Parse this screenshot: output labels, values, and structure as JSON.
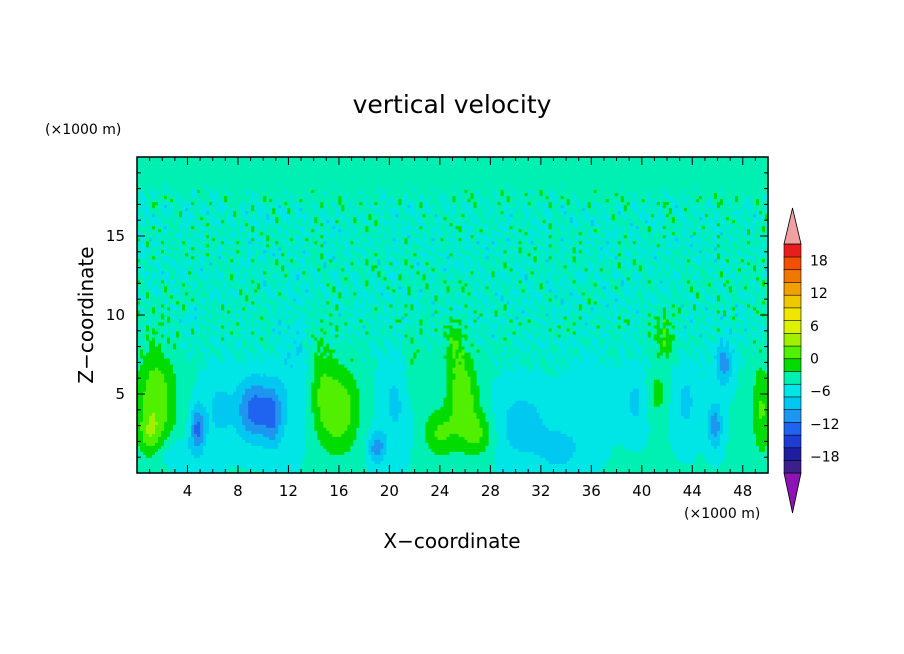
{
  "chart_data": {
    "type": "heatmap",
    "title": "vertical velocity",
    "xlabel": "X−coordinate",
    "ylabel": "Z−coordinate",
    "x_unit": "(×1000 m)",
    "y_unit": "(×1000 m)",
    "xlim": [
      0,
      50
    ],
    "ylim": [
      0,
      20
    ],
    "x_ticks": [
      "4",
      "8",
      "12",
      "16",
      "20",
      "24",
      "28",
      "32",
      "36",
      "40",
      "44",
      "48"
    ],
    "y_ticks": [
      "5",
      "10",
      "15"
    ],
    "colorbar": {
      "ticks": [
        "18",
        "12",
        "6",
        "0",
        "−6",
        "−12",
        "−18"
      ],
      "range": [
        -21,
        21
      ],
      "step": 3,
      "extend": "both",
      "colors": [
        "#3c1e8c",
        "#1e1ea0",
        "#1e3cd2",
        "#1e64f0",
        "#1e96f0",
        "#00c8f0",
        "#00e6e6",
        "#00f0b4",
        "#00dc00",
        "#50f000",
        "#a0f000",
        "#dcf000",
        "#f0e600",
        "#f0c800",
        "#f0a000",
        "#f07800",
        "#f05000",
        "#e61e1e"
      ],
      "under_color": "#8c14b4",
      "over_color": "#f0a0a0"
    },
    "features": [
      {
        "x": 1.5,
        "z": 4.5,
        "sx": 1.6,
        "sz": 3.5,
        "amp": 8
      },
      {
        "x": 1.0,
        "z": 2.5,
        "sx": 0.8,
        "sz": 1.2,
        "amp": 4
      },
      {
        "x": 4.8,
        "z": 2.8,
        "sx": 0.6,
        "sz": 1.5,
        "amp": -10
      },
      {
        "x": 6.5,
        "z": 4.0,
        "sx": 1.2,
        "sz": 2.5,
        "amp": -4
      },
      {
        "x": 9.3,
        "z": 4.0,
        "sx": 1.4,
        "sz": 2.0,
        "amp": -11
      },
      {
        "x": 10.8,
        "z": 3.5,
        "sx": 0.8,
        "sz": 2.0,
        "amp": -7
      },
      {
        "x": 12.5,
        "z": 6.0,
        "sx": 1.5,
        "sz": 4.0,
        "amp": -3
      },
      {
        "x": 16.0,
        "z": 4.0,
        "sx": 1.6,
        "sz": 2.8,
        "amp": 8
      },
      {
        "x": 14.5,
        "z": 5.5,
        "sx": 1.0,
        "sz": 3.0,
        "amp": 4
      },
      {
        "x": 19.0,
        "z": 1.6,
        "sx": 0.7,
        "sz": 1.0,
        "amp": -8
      },
      {
        "x": 20.5,
        "z": 4.5,
        "sx": 1.3,
        "sz": 3.0,
        "amp": -4
      },
      {
        "x": 22.0,
        "z": 6.5,
        "sx": 1.0,
        "sz": 2.5,
        "amp": 3
      },
      {
        "x": 24.0,
        "z": 2.5,
        "sx": 1.3,
        "sz": 1.5,
        "amp": 6
      },
      {
        "x": 25.8,
        "z": 5.0,
        "sx": 1.2,
        "sz": 2.5,
        "amp": 8
      },
      {
        "x": 27.0,
        "z": 2.5,
        "sx": 1.3,
        "sz": 1.5,
        "amp": 6
      },
      {
        "x": 25.2,
        "z": 8.0,
        "sx": 0.8,
        "sz": 1.5,
        "amp": 4
      },
      {
        "x": 30.5,
        "z": 3.0,
        "sx": 2.2,
        "sz": 2.5,
        "amp": -5
      },
      {
        "x": 33.5,
        "z": 1.5,
        "sx": 1.5,
        "sz": 1.3,
        "amp": -5
      },
      {
        "x": 36.0,
        "z": 4.5,
        "sx": 1.5,
        "sz": 3.0,
        "amp": -3
      },
      {
        "x": 39.5,
        "z": 4.5,
        "sx": 1.0,
        "sz": 2.0,
        "amp": -4
      },
      {
        "x": 41.2,
        "z": 5.0,
        "sx": 0.8,
        "sz": 1.5,
        "amp": 4
      },
      {
        "x": 41.8,
        "z": 8.5,
        "sx": 0.8,
        "sz": 1.5,
        "amp": 5
      },
      {
        "x": 43.5,
        "z": 4.5,
        "sx": 1.0,
        "sz": 2.5,
        "amp": -4
      },
      {
        "x": 45.8,
        "z": 3.0,
        "sx": 0.6,
        "sz": 1.5,
        "amp": -8
      },
      {
        "x": 46.5,
        "z": 7.0,
        "sx": 0.7,
        "sz": 1.5,
        "amp": -8
      },
      {
        "x": 49.5,
        "z": 4.0,
        "sx": 0.8,
        "sz": 3.0,
        "amp": 6
      },
      {
        "x": 3.0,
        "z": 1.2,
        "sx": 1.5,
        "sz": 1.0,
        "amp": -4
      }
    ]
  }
}
